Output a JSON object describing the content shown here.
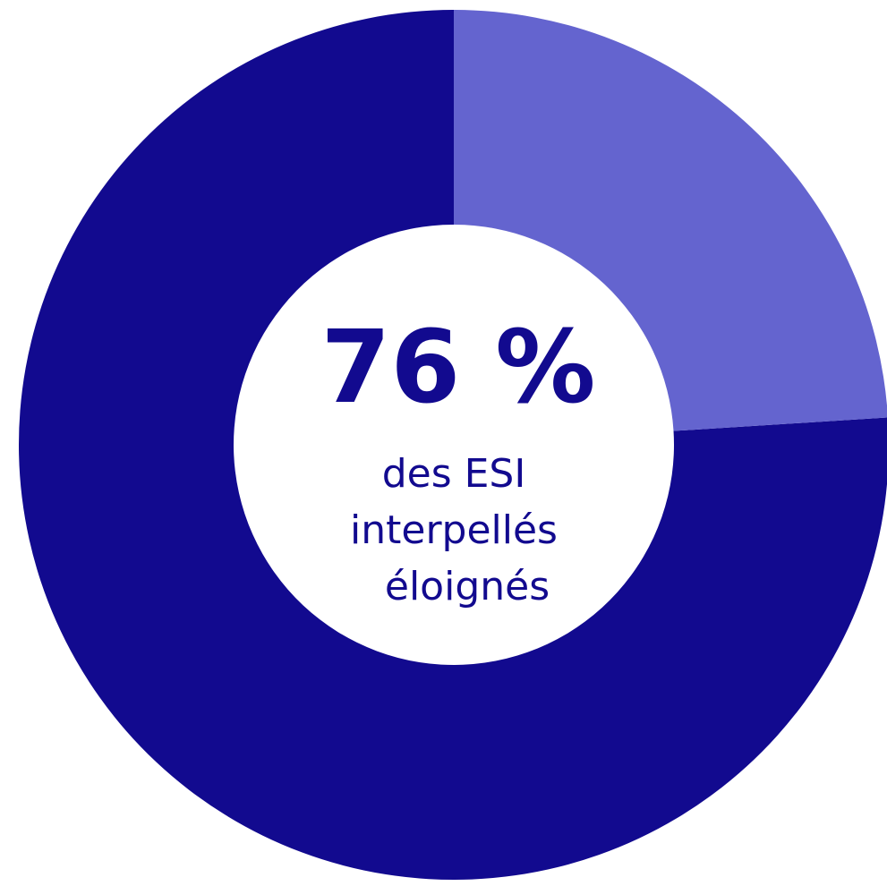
{
  "chart_data": {
    "type": "pie",
    "donut": true,
    "values": [
      76,
      24
    ],
    "value_labels": [
      "76 %",
      null
    ],
    "colors": [
      "#120a8f",
      "#6464cf"
    ],
    "annotation": [
      "des ESI",
      "interpellés",
      "éloignés"
    ]
  }
}
